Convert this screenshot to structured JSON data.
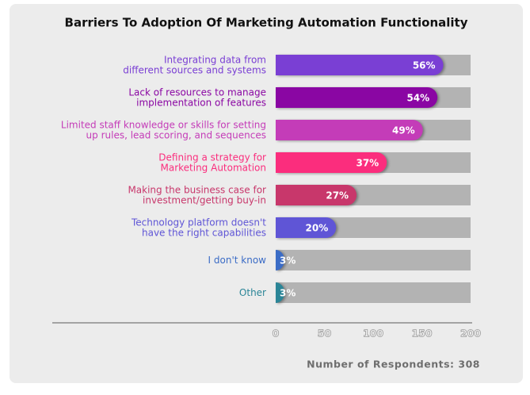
{
  "chart_data": {
    "type": "hbar",
    "title": "Barriers To Adoption Of Marketing Automation Functionality",
    "categories": [
      "Integrating data from\ndifferent sources and systems",
      "Lack of resources to manage\nimplementation of features",
      "Limited staff knowledge or skills for setting\nup rules, lead scoring, and sequences",
      "Defining a strategy for\nMarketing Automation",
      "Making the business case for\ninvestment/getting buy-in",
      "Technology platform doesn't\nhave the right capabilities",
      "I don't know",
      "Other"
    ],
    "values": [
      172,
      166,
      151,
      114,
      83,
      62,
      9,
      9
    ],
    "value_labels": [
      "56%",
      "54%",
      "49%",
      "37%",
      "27%",
      "20%",
      "3%",
      "3%"
    ],
    "colors": [
      "#7a3fd4",
      "#8a06a3",
      "#c43cb8",
      "#fb2d7d",
      "#c8376b",
      "#5f55d6",
      "#3b6cc6",
      "#2b8597"
    ],
    "track_color": "#b3b3b3",
    "xlim": [
      0,
      200
    ],
    "xticks": [
      0,
      50,
      100,
      150,
      200
    ],
    "footer": "Number of Respondents: 308"
  }
}
